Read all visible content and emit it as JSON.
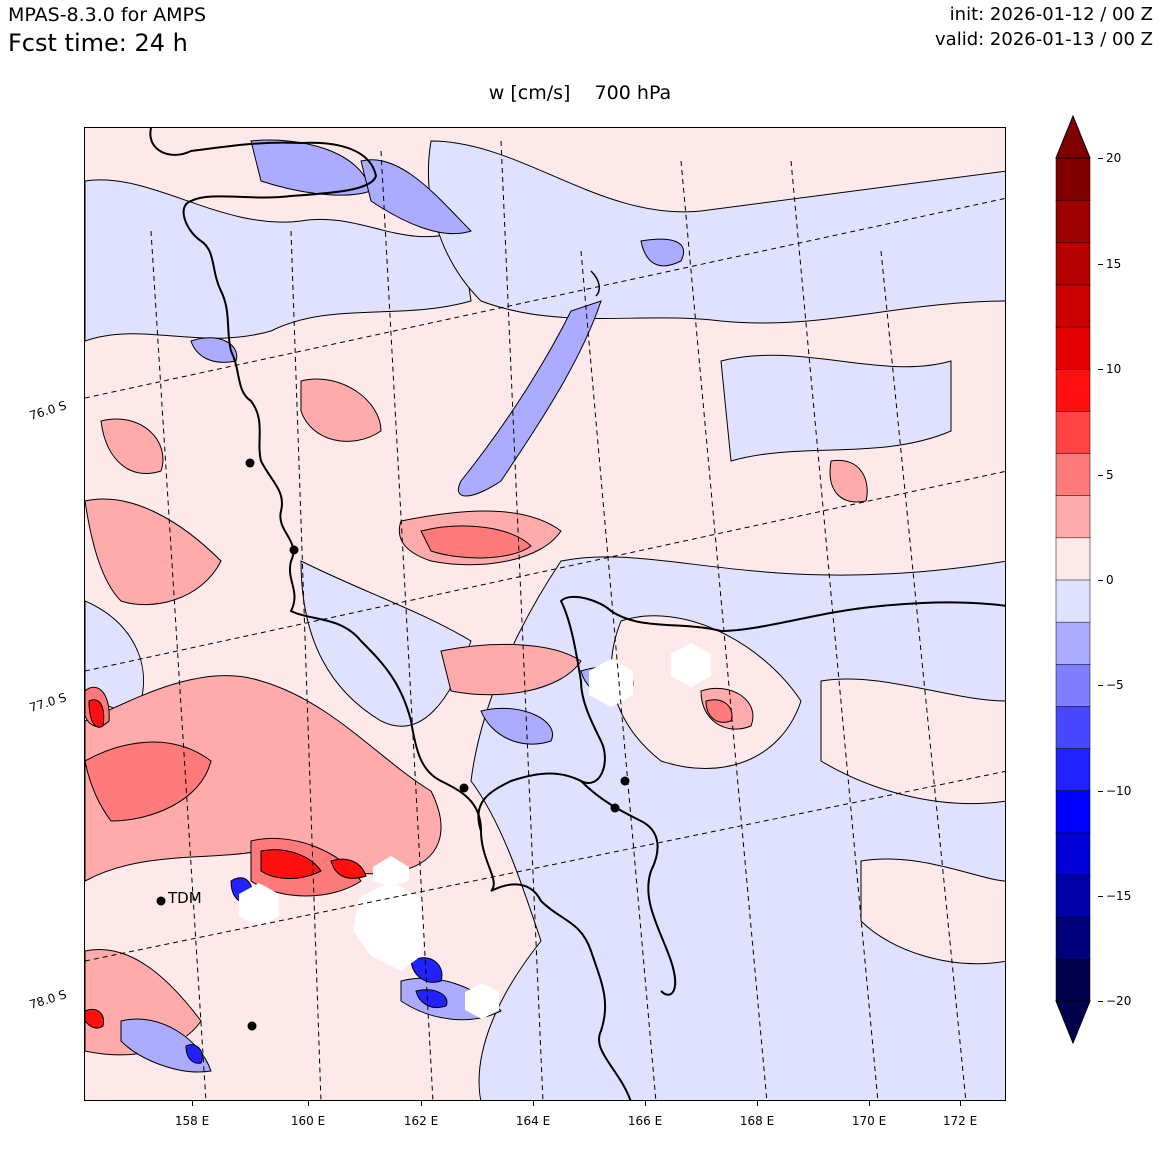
{
  "header": {
    "model": "MPAS-8.3.0 for AMPS",
    "forecast": "Fcst time:   24 h",
    "init": "init: 2026-01-12 / 00 Z",
    "valid": "valid: 2026-01-13 / 00 Z"
  },
  "title": "w [cm/s]    700 hPa",
  "map": {
    "lon_labels": [
      "158 E",
      "160 E",
      "162 E",
      "164 E",
      "166 E",
      "168 E",
      "170 E",
      "172 E"
    ],
    "lat_labels": [
      "76.0 S",
      "77.0 S",
      "78.0 S"
    ],
    "station_label": "TDM",
    "colors": {
      "positive": "#f08080",
      "negative": "#8080ff",
      "background": "#fde9e9"
    }
  },
  "colorbar": {
    "tick_labels": [
      "20",
      "15",
      "10",
      "5",
      "0",
      "−5",
      "−10",
      "−15",
      "−20"
    ],
    "levels": [
      -20,
      -18,
      -16,
      -14,
      -12,
      -10,
      -8,
      -6,
      -4,
      -2,
      0,
      2,
      4,
      6,
      8,
      10,
      12,
      14,
      16,
      18,
      20
    ],
    "colors": [
      "#00004c",
      "#00007a",
      "#0000a8",
      "#0000d6",
      "#0000ff",
      "#2222ff",
      "#4848ff",
      "#8080ff",
      "#ababff",
      "#e0e0ff",
      "#fde9e9",
      "#ffabab",
      "#ff7b7b",
      "#ff4444",
      "#ff1010",
      "#e40000",
      "#cc0000",
      "#b40000",
      "#9c0000",
      "#800000"
    ]
  }
}
